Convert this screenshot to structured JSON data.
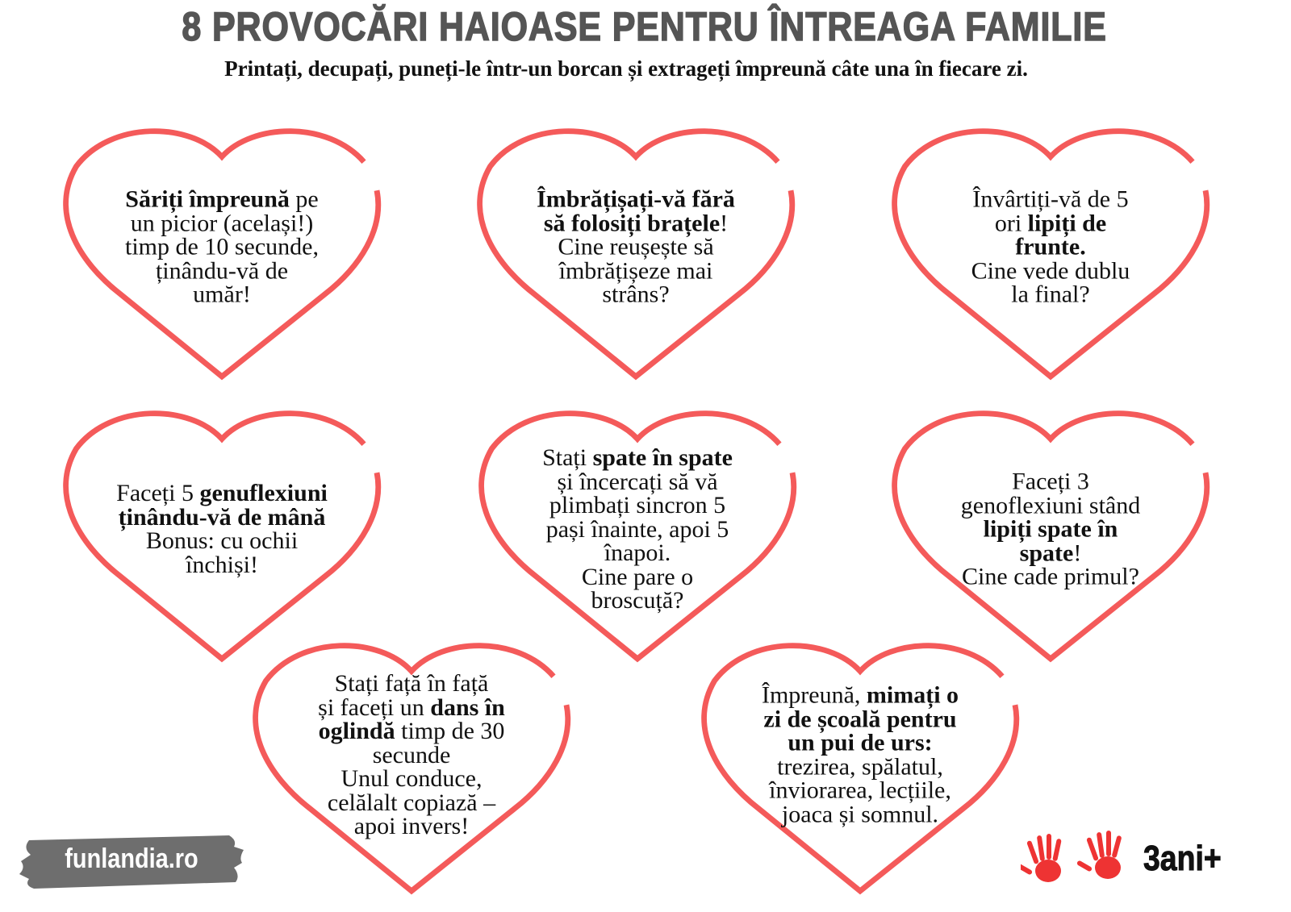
{
  "header": {
    "title": "8 PROVOCĂRI HAIOASE PENTRU ÎNTREAGA FAMILIE",
    "subtitle": "Printați, decupați, puneți-le într-un borcan și extrageți împreună câte una în fiecare zi."
  },
  "colors": {
    "heart": "#f45a5a",
    "title": "#555555",
    "logo_bg": "#6e6e6e",
    "hands": "#ee3333"
  },
  "hearts": [
    {
      "lines": [
        [
          {
            "t": "Săriți împreună",
            "b": true
          },
          {
            "t": " pe"
          }
        ],
        [
          {
            "t": "un picior (același!)"
          }
        ],
        [
          {
            "t": "timp de 10 secunde,"
          }
        ],
        [
          {
            "t": "ținându-vă de"
          }
        ],
        [
          {
            "t": "umăr!"
          }
        ]
      ]
    },
    {
      "lines": [
        [
          {
            "t": "Îmbrățișați-vă fără",
            "b": true
          }
        ],
        [
          {
            "t": "să folosiți brațele",
            "b": true
          },
          {
            "t": "!"
          }
        ],
        [
          {
            "t": "Cine reușește să"
          }
        ],
        [
          {
            "t": "îmbrățișeze mai"
          }
        ],
        [
          {
            "t": "strâns?"
          }
        ]
      ]
    },
    {
      "lines": [
        [
          {
            "t": "Învârtiți-vă de 5"
          }
        ],
        [
          {
            "t": "ori "
          },
          {
            "t": "lipiți de",
            "b": true
          }
        ],
        [
          {
            "t": "frunte.",
            "b": true
          }
        ],
        [
          {
            "t": "Cine vede dublu"
          }
        ],
        [
          {
            "t": "la final?"
          }
        ]
      ]
    },
    {
      "lines": [
        [
          {
            "t": "Faceți 5 "
          },
          {
            "t": "genuflexiuni",
            "b": true
          }
        ],
        [
          {
            "t": "ținându-vă de mână",
            "b": true
          }
        ],
        [
          {
            "t": "Bonus: cu ochii"
          }
        ],
        [
          {
            "t": "închiși!"
          }
        ]
      ]
    },
    {
      "lines": [
        [
          {
            "t": "Stați "
          },
          {
            "t": "spate în spate",
            "b": true
          }
        ],
        [
          {
            "t": "și încercați să vă"
          }
        ],
        [
          {
            "t": "plimbați sincron 5"
          }
        ],
        [
          {
            "t": "pași înainte, apoi 5"
          }
        ],
        [
          {
            "t": "înapoi."
          }
        ],
        [
          {
            "t": "Cine pare o"
          }
        ],
        [
          {
            "t": "broscuță?"
          }
        ]
      ]
    },
    {
      "lines": [
        [
          {
            "t": "Faceți 3"
          }
        ],
        [
          {
            "t": "genoflexiuni stând"
          }
        ],
        [
          {
            "t": "lipiți spate în",
            "b": true
          }
        ],
        [
          {
            "t": "spate",
            "b": true
          },
          {
            "t": "!"
          }
        ],
        [
          {
            "t": "Cine cade primul?"
          }
        ]
      ]
    },
    {
      "lines": [
        [
          {
            "t": "Stați față în față"
          }
        ],
        [
          {
            "t": "și faceți un "
          },
          {
            "t": "dans în",
            "b": true
          }
        ],
        [
          {
            "t": "oglindă",
            "b": true
          },
          {
            "t": " timp de 30"
          }
        ],
        [
          {
            "t": "secunde"
          }
        ],
        [
          {
            "t": "Unul conduce,"
          }
        ],
        [
          {
            "t": "celălalt copiază –"
          }
        ],
        [
          {
            "t": "apoi invers!"
          }
        ]
      ]
    },
    {
      "lines": [
        [
          {
            "t": "Împreună, "
          },
          {
            "t": "mimați o",
            "b": true
          }
        ],
        [
          {
            "t": "zi de școală pentru",
            "b": true
          }
        ],
        [
          {
            "t": "un pui de urs:",
            "b": true
          }
        ],
        [
          {
            "t": "trezirea, spălatul,"
          }
        ],
        [
          {
            "t": "înviorarea, lecțiile,"
          }
        ],
        [
          {
            "t": "joaca și somnul."
          }
        ]
      ]
    }
  ],
  "footer": {
    "logo_text": "funlandia.ro",
    "age_text": "3ani+"
  }
}
